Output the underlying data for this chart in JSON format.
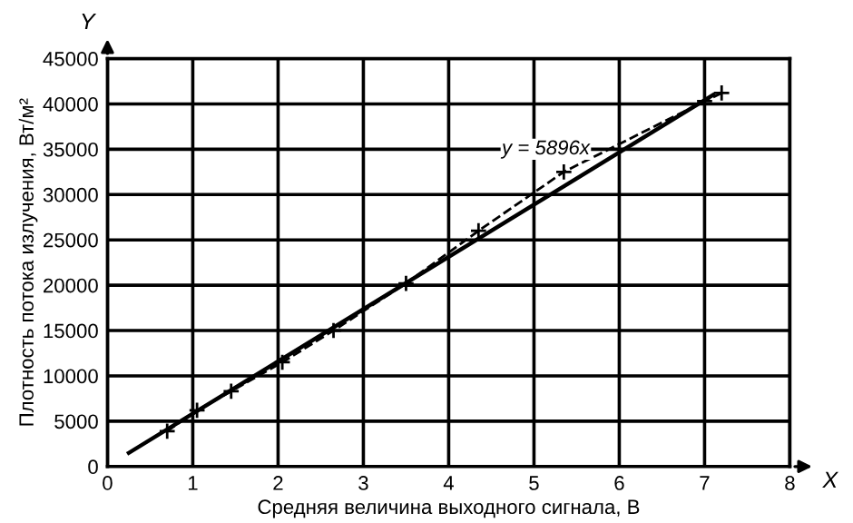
{
  "chart_data": {
    "type": "line",
    "xlabel": "Средняя величина выходного сигнала, В",
    "ylabel": "Плотность потока излучения, Вт/м²",
    "xlim": [
      0,
      8
    ],
    "ylim": [
      0,
      45000
    ],
    "xticks": [
      0,
      1,
      2,
      3,
      4,
      5,
      6,
      7,
      8
    ],
    "yticks": [
      0,
      5000,
      10000,
      15000,
      20000,
      25000,
      30000,
      35000,
      40000,
      45000
    ],
    "grid": true,
    "series": [
      {
        "color": "#000000",
        "line_style": "solid",
        "marker": "none",
        "x": [
          0.25,
          7.1
        ],
        "values": [
          1500,
          41000
        ]
      },
      {
        "color": "#000000",
        "line_style": "dashed",
        "marker": "cross",
        "x": [
          0.7,
          1.05,
          1.45,
          2.05,
          2.65,
          3.5,
          4.35,
          5.35,
          7.0,
          7.2
        ],
        "values": [
          3900,
          6200,
          8300,
          11500,
          15000,
          20200,
          26000,
          32500,
          40300,
          41200
        ]
      }
    ],
    "annotations": [
      {
        "text": "y = 5896x",
        "x": 5.95,
        "y": 35000
      },
      "X",
      "Y"
    ]
  }
}
